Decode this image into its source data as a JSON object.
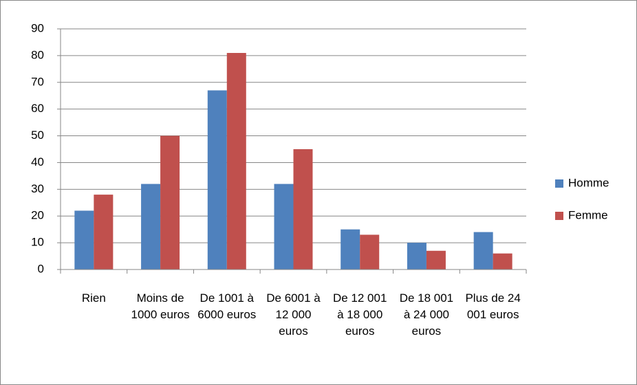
{
  "chart_data": {
    "type": "bar",
    "categories": [
      "Rien",
      "Moins de 1000 euros",
      "De 1001 à 6000 euros",
      "De 6001 à 12 000 euros",
      "De 12 001 à 18 000 euros",
      "De 18 001 à 24 000 euros",
      "Plus de 24 001 euros"
    ],
    "series": [
      {
        "name": "Homme",
        "color": "#4f81bd",
        "values": [
          22,
          32,
          67,
          32,
          15,
          10,
          14
        ]
      },
      {
        "name": "Femme",
        "color": "#c0504d",
        "values": [
          28,
          50,
          81,
          45,
          13,
          7,
          6
        ]
      }
    ],
    "ylim": [
      0,
      90
    ],
    "yticks": [
      0,
      10,
      20,
      30,
      40,
      50,
      60,
      70,
      80,
      90
    ],
    "grid": true,
    "legend": "right"
  }
}
